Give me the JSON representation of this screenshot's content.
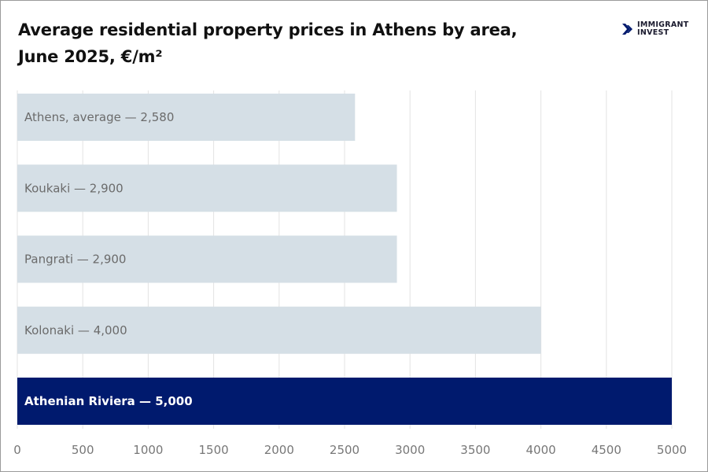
{
  "title_line1": "Average residential property prices in Athens by area,",
  "title_line2": "June 2025, €/m²",
  "logo": {
    "line1": "IMMIGRANT",
    "line2": "INVEST",
    "icon": "double-chevron-right-icon"
  },
  "chart_data": {
    "type": "bar",
    "orientation": "horizontal",
    "title": "Average residential property prices in Athens by area, June 2025, €/m²",
    "categories": [
      "Athens, average",
      "Koukaki",
      "Pangrati",
      "Kolonaki",
      "Athenian Riviera"
    ],
    "values": [
      2580,
      2900,
      2900,
      4000,
      5000
    ],
    "labels": [
      "Athens, average — 2,580",
      "Koukaki —  2,900",
      "Pangrati — 2,900",
      "Kolonaki — 4,000",
      "Athenian Riviera —  5,000"
    ],
    "highlight_index": 4,
    "xlim": [
      0,
      5000
    ],
    "xticks": [
      0,
      500,
      1000,
      1500,
      2000,
      2500,
      3000,
      3500,
      4000,
      4500,
      5000
    ],
    "grid": true,
    "colors": {
      "bar": "#d5dfe6",
      "highlight": "#001a6e",
      "label": "#6b6b6b",
      "highlight_label": "#ffffff",
      "grid": "#e3e3e3",
      "tick": "#777777"
    }
  }
}
